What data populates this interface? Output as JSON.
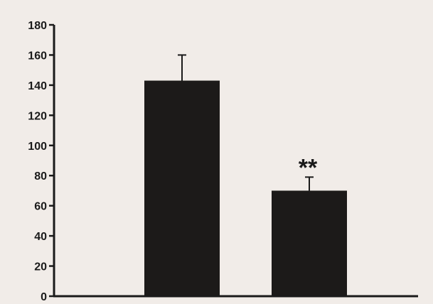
{
  "chart_data": {
    "type": "bar",
    "title": "",
    "xlabel": "",
    "ylabel": "",
    "categories": [
      "",
      ""
    ],
    "values": [
      143,
      70
    ],
    "errors": [
      17,
      9
    ],
    "annotations": [
      "",
      "**"
    ],
    "ylim": [
      0,
      180
    ],
    "yticks": [
      "0",
      "20",
      "40",
      "60",
      "80",
      "100",
      "120",
      "140",
      "160",
      "180"
    ],
    "grid": false,
    "legend": "none",
    "colors": {
      "bar": "#1c1a19",
      "axis": "#1a1a1a",
      "background": "#f1ece8"
    }
  }
}
